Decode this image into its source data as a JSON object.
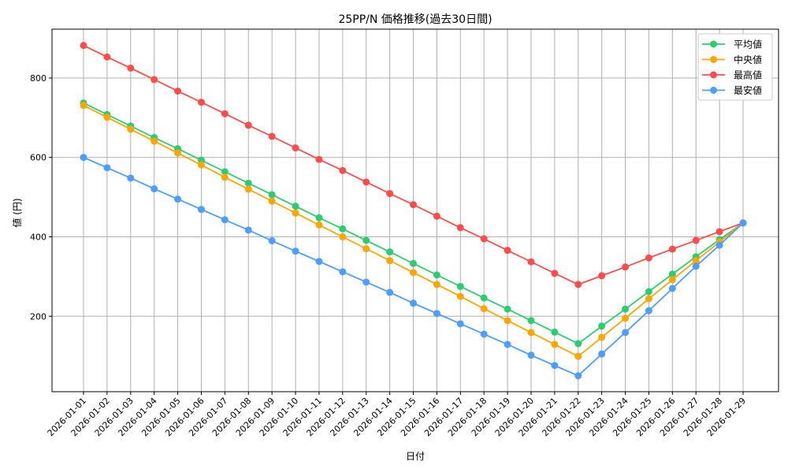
{
  "chart_data": {
    "type": "line",
    "title": "25PP/N 価格推移(過去30日間)",
    "xlabel": "日付",
    "ylabel": "値 (円)",
    "ylim": [
      10,
      923
    ],
    "yticks": [
      200,
      400,
      600,
      800
    ],
    "grid": true,
    "legend_position": "top-right",
    "categories": [
      "2026-01-01",
      "2026-01-02",
      "2026-01-03",
      "2026-01-04",
      "2026-01-05",
      "2026-01-06",
      "2026-01-07",
      "2026-01-08",
      "2026-01-09",
      "2026-01-10",
      "2026-01-11",
      "2026-01-12",
      "2026-01-13",
      "2026-01-14",
      "2026-01-15",
      "2026-01-16",
      "2026-01-17",
      "2026-01-18",
      "2026-01-19",
      "2026-01-20",
      "2026-01-21",
      "2026-01-22",
      "2026-01-23",
      "2026-01-24",
      "2026-01-25",
      "2026-01-26",
      "2026-01-27",
      "2026-01-28",
      "2026-01-29"
    ],
    "series": [
      {
        "name": "平均値",
        "color": "#2ecc71",
        "values": [
          737,
          708,
          679,
          650,
          622,
          593,
          564,
          535,
          506,
          477,
          448,
          420,
          391,
          362,
          333,
          304,
          275,
          246,
          218,
          189,
          160,
          131,
          175,
          218,
          262,
          306,
          350,
          393,
          435
        ]
      },
      {
        "name": "中央値",
        "color": "#ffa500",
        "values": [
          731,
          701,
          671,
          641,
          611,
          581,
          550,
          520,
          490,
          460,
          430,
          400,
          370,
          340,
          310,
          280,
          250,
          219,
          189,
          159,
          129,
          99,
          147,
          195,
          244,
          292,
          340,
          387,
          435
        ]
      },
      {
        "name": "最高値",
        "color": "#ff4d4d",
        "values": [
          882,
          853,
          825,
          796,
          767,
          739,
          710,
          681,
          653,
          624,
          595,
          567,
          538,
          509,
          481,
          452,
          423,
          395,
          366,
          337,
          308,
          280,
          302,
          324,
          347,
          369,
          391,
          413,
          435
        ]
      },
      {
        "name": "最安値",
        "color": "#4d9eff",
        "values": [
          600,
          574,
          548,
          521,
          495,
          469,
          443,
          417,
          390,
          364,
          338,
          312,
          286,
          260,
          233,
          207,
          181,
          155,
          129,
          102,
          76,
          50,
          105,
          159,
          214,
          270,
          326,
          379,
          435
        ]
      }
    ]
  }
}
